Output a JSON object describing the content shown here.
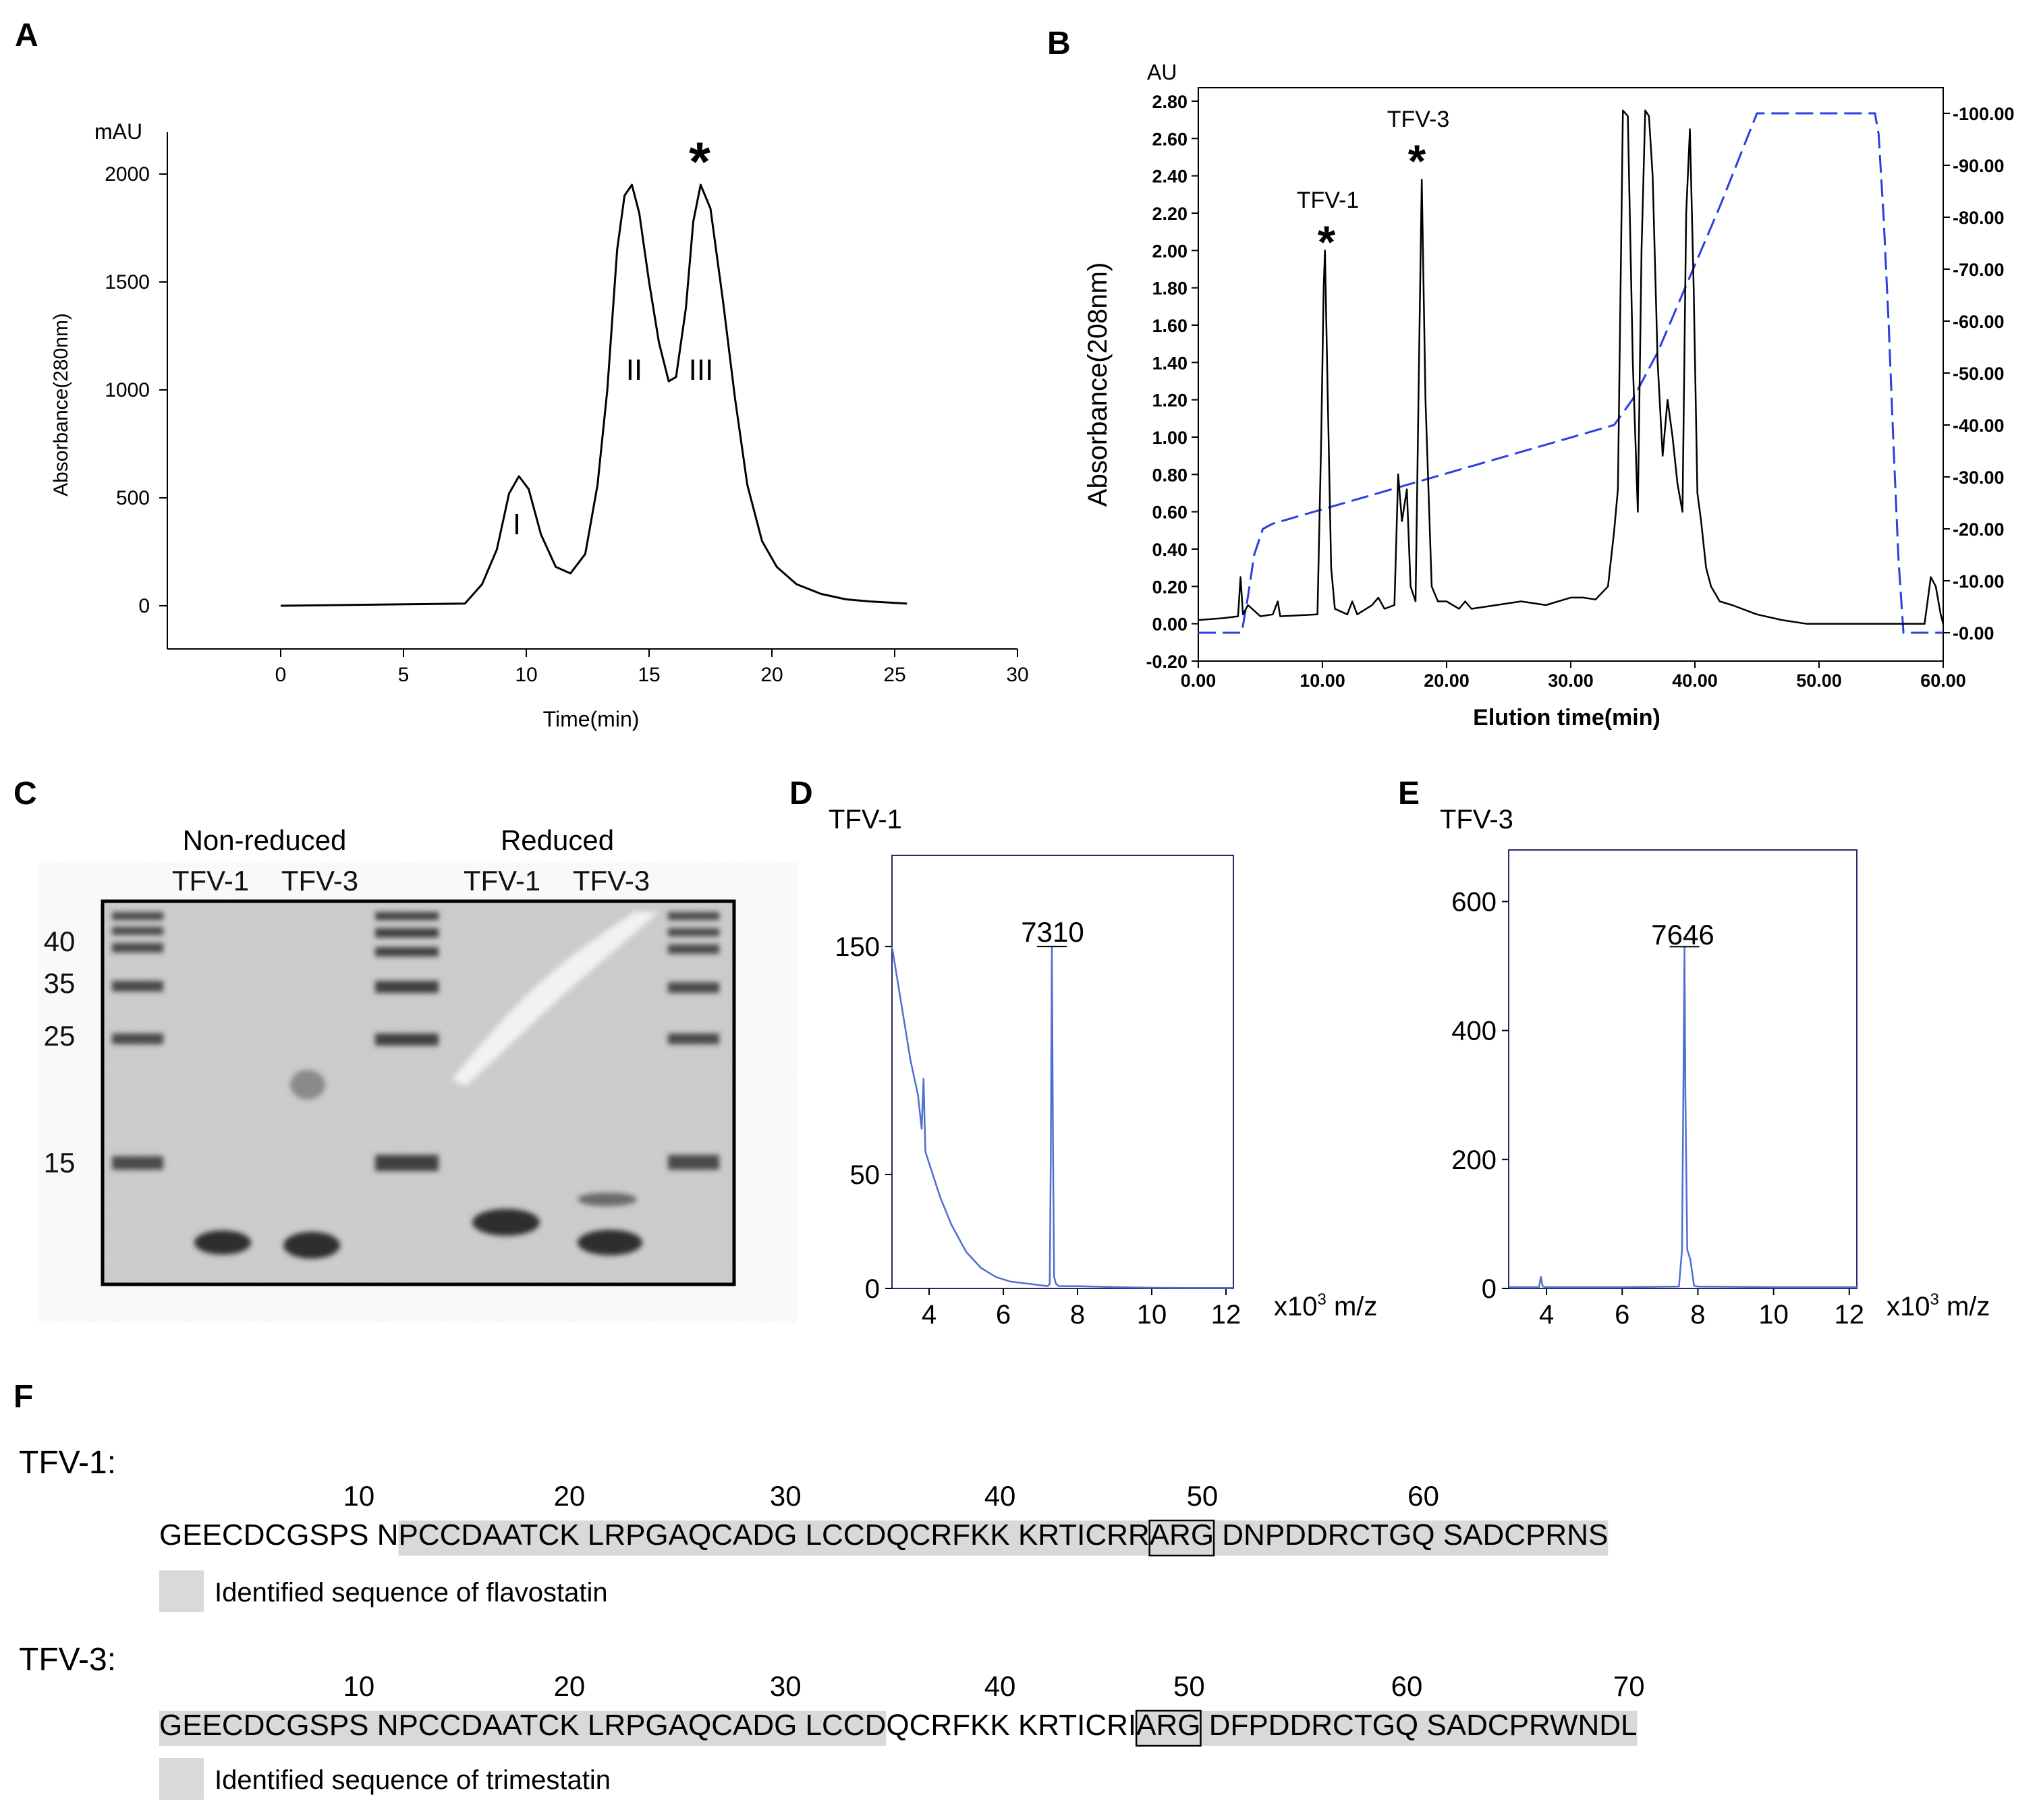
{
  "panels": {
    "A": {
      "letter": "A",
      "y_unit": "mAU",
      "ylabel": "Absorbance(280nm)",
      "xlabel": "Time(min)",
      "xticks": [
        0,
        5,
        10,
        15,
        20,
        25,
        30
      ],
      "yticks": [
        0,
        500,
        1000,
        1500,
        2000
      ],
      "peak_labels": [
        "I",
        "II",
        "III"
      ],
      "marker": "*"
    },
    "B": {
      "letter": "B",
      "y_unit": "AU",
      "ylabel": "Absorbance(208nm)",
      "xlabel": "Elution time(min)",
      "xticks": [
        "0.00",
        "10.00",
        "20.00",
        "30.00",
        "40.00",
        "50.00",
        "60.00"
      ],
      "yticks_left": [
        "-0.20",
        "0.00",
        "0.20",
        "0.40",
        "0.60",
        "0.80",
        "1.00",
        "1.20",
        "1.40",
        "1.60",
        "1.80",
        "2.00",
        "2.20",
        "2.40",
        "2.60",
        "2.80"
      ],
      "yticks_right": [
        "0.00",
        "10.00",
        "20.00",
        "30.00",
        "40.00",
        "50.00",
        "60.00",
        "70.00",
        "80.00",
        "90.00",
        "100.00"
      ],
      "peak_labels": [
        "TFV-1",
        "TFV-3"
      ],
      "marker": "*"
    },
    "C": {
      "letter": "C",
      "group_labels": [
        "Non-reduced",
        "Reduced"
      ],
      "lane_labels": [
        "TFV-1",
        "TFV-3",
        "TFV-1",
        "TFV-3"
      ],
      "marker_labels": [
        "40",
        "35",
        "25",
        "15"
      ]
    },
    "D": {
      "letter": "D",
      "title": "TFV-1",
      "peak_label": "7310",
      "xticks": [
        "4",
        "6",
        "8",
        "10",
        "12"
      ],
      "yticks": [
        "0",
        "50",
        "150"
      ],
      "xunit_prefix": "x10",
      "xunit_sup": "3",
      "xunit_suffix": " m/z"
    },
    "E": {
      "letter": "E",
      "title": "TFV-3",
      "peak_label": "7646",
      "xticks": [
        "4",
        "6",
        "8",
        "10",
        "12"
      ],
      "yticks": [
        "0",
        "200",
        "400",
        "600"
      ],
      "xunit_prefix": "x10",
      "xunit_sup": "3",
      "xunit_suffix": " m/z"
    },
    "F": {
      "letter": "F",
      "seq1_name": "TFV-1:",
      "seq1_numbers": [
        "10",
        "20",
        "30",
        "40",
        "50",
        "60"
      ],
      "seq1_text": "GEECDCGSPS NPCCDAATCK LRPGAQCADG LCCDQCRFKK KRTICRRARG DNPDDRCTGQ SADCPRNS",
      "seq1_legend": "Identified sequence of flavostatin",
      "seq2_name": "TFV-3:",
      "seq2_numbers": [
        "10",
        "20",
        "30",
        "40",
        "50",
        "60",
        "70"
      ],
      "seq2_text": "GEECDCGSPS NPCCDAATCK LRPGAQCADG LCCDQCRFKK KRTICRIARG DFPDDRCTGQ SADCPRWNDL",
      "seq2_legend": "Identified sequence of trimestatin"
    }
  },
  "colors": {
    "trace": "#000000",
    "gradient": "#2b3fe0",
    "ms_trace": "#4f6fd0",
    "highlight": "#d9d9d9",
    "gel_bg": "#cdcdcd",
    "gel_band": "#3a3a3a"
  },
  "chart_data": [
    {
      "panel": "A",
      "type": "line",
      "xlabel": "Time(min)",
      "ylabel": "Absorbance(280nm)",
      "y_unit": "mAU",
      "xlim": [
        0,
        30
      ],
      "ylim": [
        0,
        2000
      ],
      "series": [
        {
          "x": [
            0,
            7.5,
            8.2,
            8.8,
            9.3,
            9.7,
            10.1,
            10.6,
            11.2,
            11.8,
            12.4,
            12.9,
            13.3,
            13.7,
            14.0,
            14.3,
            14.6,
            15.0,
            15.4,
            15.8,
            16.1,
            16.5,
            16.8,
            17.1,
            17.5,
            18.0,
            18.5,
            19.0,
            19.6,
            20.2,
            21.0,
            22.0,
            23.0,
            24.0,
            25.5
          ],
          "y": [
            0,
            10,
            100,
            260,
            520,
            600,
            540,
            330,
            180,
            150,
            240,
            560,
            1000,
            1650,
            1900,
            1950,
            1820,
            1500,
            1220,
            1040,
            1060,
            1380,
            1780,
            1950,
            1840,
            1420,
            960,
            560,
            300,
            180,
            100,
            55,
            30,
            20,
            10
          ]
        }
      ],
      "annotations": [
        "I",
        "II",
        "III",
        "*"
      ]
    },
    {
      "panel": "B",
      "type": "line",
      "xlabel": "Elution time(min)",
      "ylabel": "Absorbance(208nm)",
      "y_unit": "AU",
      "xlim": [
        0,
        60
      ],
      "ylim": [
        -0.2,
        2.8
      ],
      "y2lim": [
        0,
        100
      ],
      "series": [
        {
          "name": "",
          "x": [
            0,
            2.0,
            3.2,
            3.4,
            3.6,
            4.0,
            5.0,
            6.0,
            6.4,
            6.6,
            9.6,
            9.9,
            10.1,
            10.2,
            10.4,
            10.7,
            11.0,
            12.0,
            12.4,
            12.8,
            14.0,
            14.5,
            15.0,
            15.8,
            16.1,
            16.4,
            16.8,
            17.1,
            17.5,
            17.8,
            18.0,
            18.3,
            18.8,
            19.3,
            20.0,
            21.0,
            21.5,
            22.0,
            24.0,
            26.0,
            28.0,
            30.0,
            31.0,
            32.0,
            33.0,
            33.5,
            33.8,
            34.2,
            34.6,
            35.0,
            35.4,
            35.7,
            36.0,
            36.3,
            36.6,
            37.0,
            37.4,
            37.8,
            38.2,
            38.6,
            39.0,
            39.3,
            39.6,
            39.9,
            40.2,
            40.5,
            40.9,
            41.3,
            42.0,
            43.0,
            45.0,
            47.0,
            49.0,
            52.0,
            55.0,
            57.0,
            58.5,
            59.0,
            59.4,
            59.8,
            60.0
          ],
          "y": [
            0.02,
            0.03,
            0.04,
            0.25,
            0.05,
            0.1,
            0.04,
            0.05,
            0.12,
            0.04,
            0.05,
            1.0,
            1.8,
            2.0,
            1.3,
            0.3,
            0.08,
            0.05,
            0.12,
            0.05,
            0.1,
            0.14,
            0.08,
            0.1,
            0.8,
            0.55,
            0.72,
            0.2,
            0.12,
            1.5,
            2.38,
            1.2,
            0.2,
            0.12,
            0.12,
            0.08,
            0.12,
            0.08,
            0.1,
            0.12,
            0.1,
            0.14,
            0.14,
            0.13,
            0.2,
            0.5,
            0.72,
            2.75,
            2.72,
            1.4,
            0.6,
            2.0,
            2.75,
            2.72,
            2.4,
            1.4,
            0.9,
            1.2,
            1.0,
            0.75,
            0.6,
            2.2,
            2.65,
            1.8,
            0.7,
            0.55,
            0.3,
            0.2,
            0.12,
            0.1,
            0.05,
            0.02,
            0.0,
            0.0,
            0.0,
            0.0,
            0.0,
            0.25,
            0.2,
            0.05,
            0.0
          ]
        },
        {
          "name": "",
          "axis": "right",
          "x": [
            0,
            3.5,
            4.0,
            4.5,
            5.2,
            6.0,
            33.5,
            35.0,
            37.0,
            39.5,
            42.0,
            45.0,
            54.5,
            54.8,
            55.2,
            55.6,
            56.0,
            56.4,
            56.8,
            60.0
          ],
          "y": [
            0,
            0,
            7,
            15,
            20,
            21,
            40,
            45,
            54,
            68,
            82,
            100,
            100,
            96,
            80,
            60,
            36,
            14,
            0,
            0
          ]
        }
      ],
      "annotations": [
        "TFV-1",
        "TFV-3",
        "*",
        "*"
      ]
    },
    {
      "panel": "D",
      "type": "line",
      "title": "TFV-1",
      "xlim": [
        3,
        12.2
      ],
      "ylim": [
        0,
        190
      ],
      "xunit": "x10^3 m/z",
      "peak": 7310,
      "series": [
        {
          "x": [
            3.0,
            3.1,
            3.3,
            3.5,
            3.7,
            3.8,
            3.85,
            3.9,
            4.0,
            4.3,
            4.6,
            5.0,
            5.4,
            5.8,
            6.2,
            6.7,
            7.2,
            7.25,
            7.28,
            7.31,
            7.34,
            7.37,
            7.42,
            7.5,
            8.0,
            9.0,
            10.0,
            11.0,
            12.2
          ],
          "y": [
            150,
            140,
            120,
            100,
            85,
            70,
            92,
            60,
            55,
            40,
            28,
            16,
            9,
            5,
            3,
            2,
            1,
            2,
            60,
            150,
            60,
            5,
            2,
            1,
            1,
            0.6,
            0.3,
            0.2,
            0.2
          ]
        }
      ]
    },
    {
      "panel": "E",
      "type": "line",
      "title": "TFV-3",
      "xlim": [
        3,
        12.2
      ],
      "ylim": [
        0,
        680
      ],
      "xunit": "x10^3 m/z",
      "peak": 7646,
      "series": [
        {
          "x": [
            3.0,
            3.8,
            3.85,
            3.9,
            4.0,
            6.0,
            7.5,
            7.58,
            7.62,
            7.646,
            7.67,
            7.72,
            7.8,
            7.9,
            8.0,
            10.0,
            12.2
          ],
          "y": [
            2,
            2,
            18,
            3,
            2,
            2,
            3,
            60,
            330,
            530,
            300,
            60,
            45,
            4,
            3,
            2,
            2
          ]
        }
      ]
    }
  ]
}
